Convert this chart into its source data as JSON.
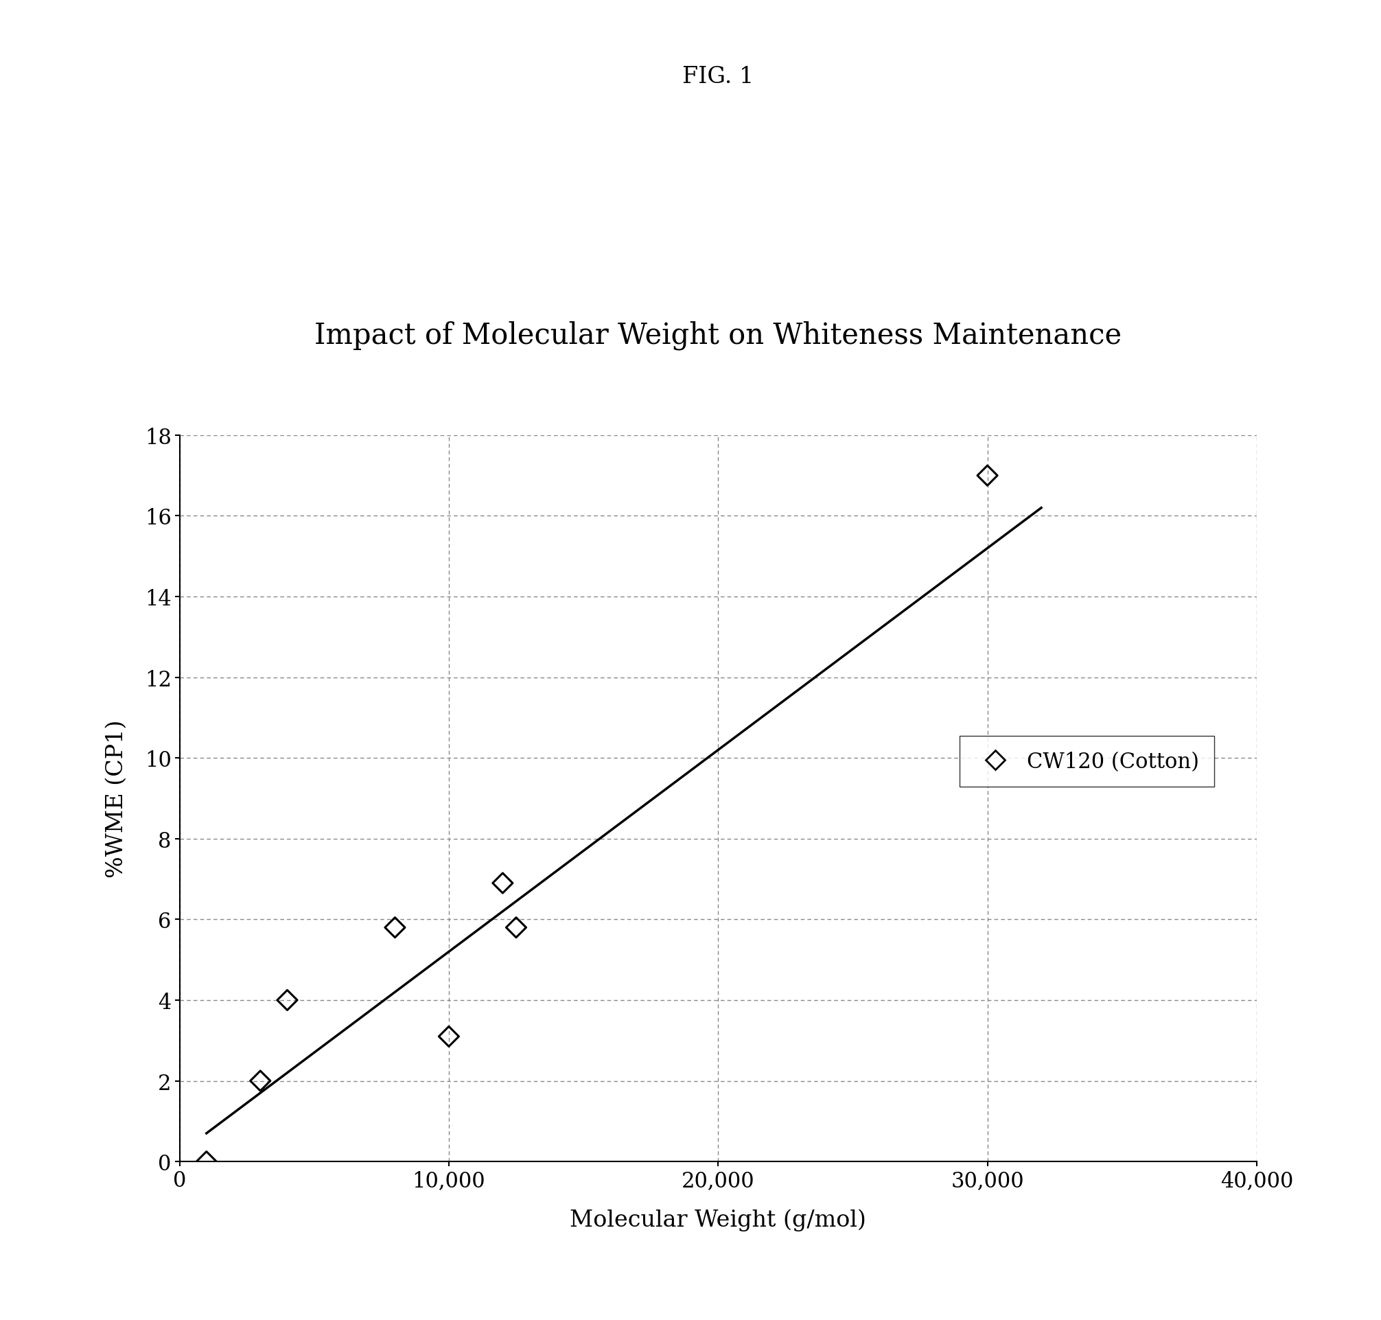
{
  "title": "Impact of Molecular Weight on Whiteness Maintenance",
  "fig_label": "FIG. 1",
  "xlabel": "Molecular Weight (g/mol)",
  "ylabel": "%WME (CP1)",
  "data_x": [
    1000,
    3000,
    4000,
    8000,
    10000,
    12000,
    12500,
    30000
  ],
  "data_y": [
    0,
    2,
    4,
    5.8,
    3.1,
    6.9,
    5.8,
    17.0
  ],
  "trendline_x": [
    1000,
    32000
  ],
  "trendline_y": [
    0.7,
    16.2
  ],
  "xlim": [
    0,
    40000
  ],
  "ylim": [
    0,
    18
  ],
  "xticks": [
    0,
    10000,
    20000,
    30000,
    40000
  ],
  "yticks": [
    0,
    2,
    4,
    6,
    8,
    10,
    12,
    14,
    16,
    18
  ],
  "xtick_labels": [
    "0",
    "10,000",
    "20,000",
    "30,000",
    "40,000"
  ],
  "ytick_labels": [
    "0",
    "2",
    "4",
    "6",
    "8",
    "10",
    "12",
    "14",
    "16",
    "18"
  ],
  "background_color": "#ffffff",
  "grid_color": "#888888",
  "line_color": "#000000",
  "marker_color": "#000000",
  "text_color": "#000000",
  "title_fontsize": 30,
  "label_fontsize": 24,
  "tick_fontsize": 22,
  "legend_fontsize": 22,
  "fig_label_fontsize": 24
}
